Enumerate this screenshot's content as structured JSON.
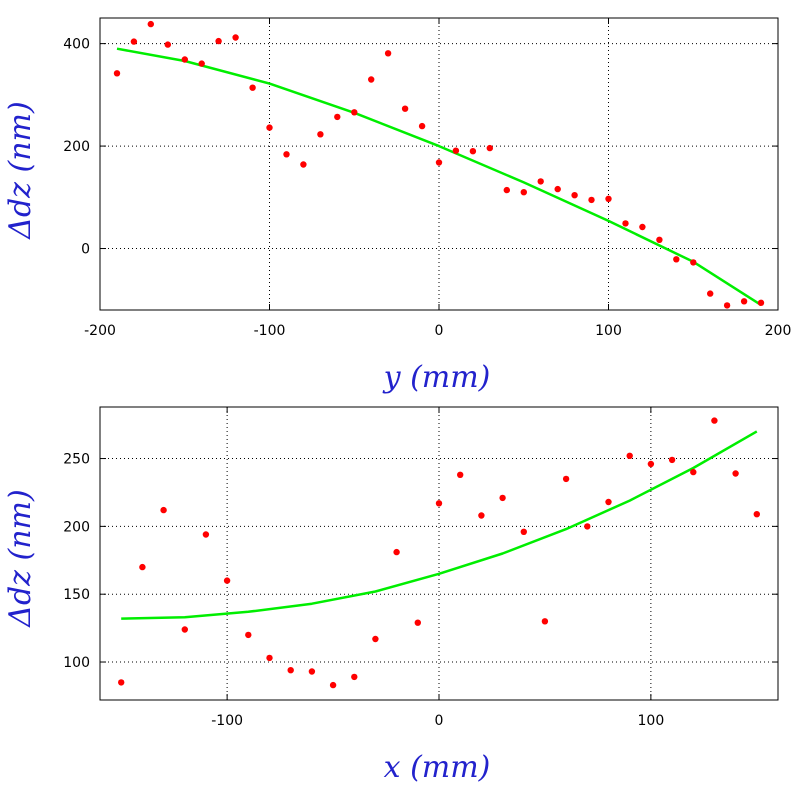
{
  "colors": {
    "fit_line": "#00ee00",
    "points": "#ff0000",
    "axis_title": "#2222cc",
    "grid": "#000000",
    "frame": "#000000"
  },
  "chart_data": [
    {
      "type": "scatter",
      "title": "",
      "xlabel": "y (mm)",
      "ylabel": "Δdz (nm)",
      "xlim": [
        -200,
        200
      ],
      "ylim": [
        -120,
        450
      ],
      "xticks": [
        "-200",
        "-100",
        "0",
        "100",
        "200"
      ],
      "yticks": [
        "0",
        "200",
        "400"
      ],
      "grid": true,
      "legend": "none",
      "series": [
        {
          "kind": "points",
          "x": [
            -190,
            -180,
            -170,
            -160,
            -150,
            -140,
            -130,
            -120,
            -110,
            -100,
            -90,
            -80,
            -70,
            -60,
            -50,
            -40,
            -30,
            -20,
            -10,
            0,
            10,
            20,
            30,
            40,
            50,
            60,
            70,
            80,
            90,
            100,
            110,
            120,
            130,
            140,
            150,
            160,
            170,
            180,
            190
          ],
          "y": [
            342,
            404,
            438,
            398,
            369,
            361,
            405,
            412,
            314,
            236,
            184,
            164,
            223,
            257,
            266,
            330,
            381,
            273,
            239,
            168,
            191,
            190,
            196,
            114,
            110,
            131,
            116,
            104,
            95,
            97,
            49,
            42,
            17,
            -21,
            -27,
            -88,
            -111,
            -103,
            -106
          ]
        },
        {
          "kind": "fit",
          "x": [
            -190,
            -150,
            -100,
            -50,
            0,
            50,
            100,
            150,
            190
          ],
          "y": [
            390,
            366,
            322,
            265,
            200,
            129,
            54,
            -26,
            -110
          ]
        }
      ]
    },
    {
      "type": "scatter",
      "title": "",
      "xlabel": "x (mm)",
      "ylabel": "Δdz (nm)",
      "xlim": [
        -160,
        160
      ],
      "ylim": [
        72,
        288
      ],
      "xticks": [
        "-100",
        "0",
        "100"
      ],
      "yticks": [
        "100",
        "150",
        "200",
        "250"
      ],
      "grid": true,
      "legend": "none",
      "series": [
        {
          "kind": "points",
          "x": [
            -150,
            -140,
            -130,
            -120,
            -110,
            -100,
            -90,
            -80,
            -70,
            -60,
            -50,
            -40,
            -30,
            -20,
            -10,
            0,
            10,
            20,
            30,
            40,
            50,
            60,
            70,
            80,
            90,
            100,
            110,
            120,
            130,
            140,
            150
          ],
          "y": [
            85,
            170,
            212,
            124,
            194,
            160,
            120,
            103,
            94,
            93,
            83,
            89,
            117,
            181,
            129,
            217,
            238,
            208,
            221,
            196,
            130,
            235,
            200,
            218,
            252,
            246,
            249,
            240,
            278,
            239,
            209
          ]
        },
        {
          "kind": "fit",
          "x": [
            -150,
            -120,
            -90,
            -60,
            -30,
            0,
            30,
            60,
            90,
            120,
            150
          ],
          "y": [
            132,
            133,
            137,
            143,
            152,
            165,
            180,
            198,
            219,
            243,
            270
          ]
        }
      ]
    }
  ]
}
